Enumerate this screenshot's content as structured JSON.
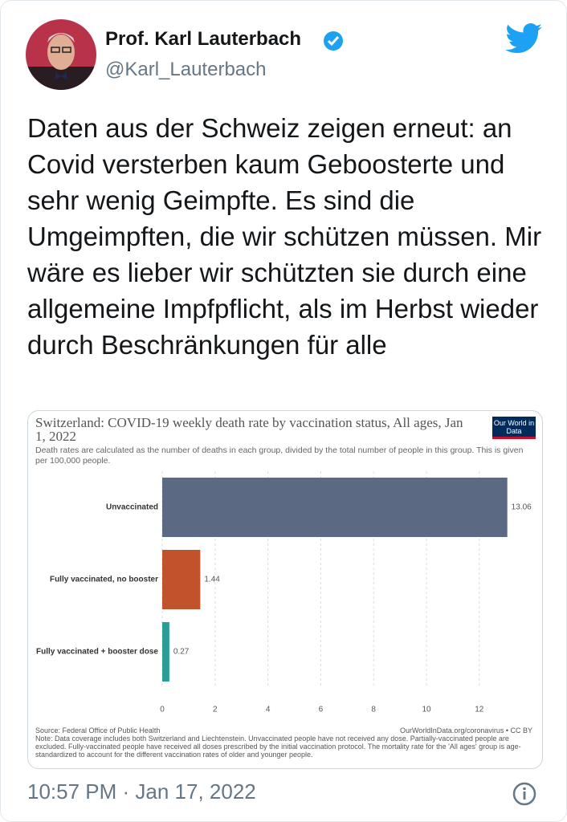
{
  "tweet": {
    "name": "Prof. Karl Lauterbach",
    "handle": "@Karl_Lauterbach",
    "text": "Daten aus der Schweiz zeigen erneut: an Covid versterben kaum Geboosterte und sehr wenig Geimpfte. Es sind die Umgeimpften, die wir schützen müssen. Mir wäre es lieber wir schützten sie durch eine allgemeine Impfpflicht, als im Herbst wieder durch Beschränkungen für alle",
    "timestamp": "10:57 PM · Jan 17, 2022"
  },
  "chart_data": {
    "type": "bar",
    "orientation": "horizontal",
    "title": "Switzerland: COVID-19 weekly death rate by vaccination status, All ages, Jan 1, 2022",
    "subtitle": "Death rates are calculated as the number of deaths in each group, divided by the total number of people in this group. This is given per 100,000 people.",
    "logo": "Our World in Data",
    "categories": [
      "Unvaccinated",
      "Fully vaccinated, no booster",
      "Fully vaccinated + booster dose"
    ],
    "values": [
      13.06,
      1.44,
      0.27
    ],
    "colors": [
      "#5b6a82",
      "#c0532b",
      "#2a9d97"
    ],
    "xlim": [
      0,
      14
    ],
    "xticks": [
      0,
      2,
      4,
      6,
      8,
      10,
      12
    ],
    "grid": true,
    "source": "Source: Federal Office of Public Health",
    "credit": "OurWorldInData.org/coronavirus • CC BY",
    "note": "Note: Data coverage includes both Switzerland and Liechtenstein. Unvaccinated people have not received any dose. Partially-vaccinated people are excluded. Fully-vaccinated people have received all doses prescribed by the initial vaccination protocol. The mortality rate for the 'All ages' group is age-standardized to account for the different vaccination rates of older and younger people."
  }
}
